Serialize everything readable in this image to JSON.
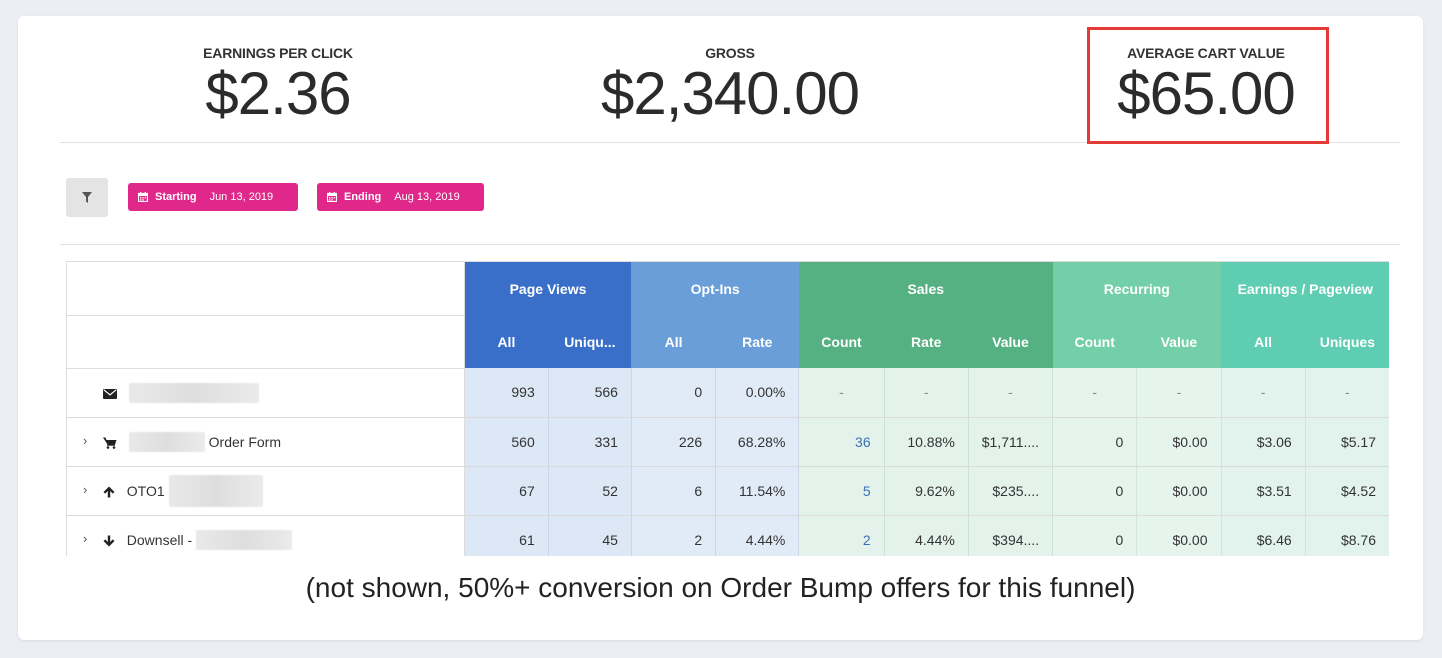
{
  "metrics": [
    {
      "label": "EARNINGS PER CLICK",
      "value": "$2.36"
    },
    {
      "label": "GROSS",
      "value": "$2,340.00"
    },
    {
      "label": "AVERAGE CART VALUE",
      "value": "$65.00"
    }
  ],
  "filters": {
    "starting_label": "Starting",
    "starting_value": "Jun 13, 2019",
    "ending_label": "Ending",
    "ending_value": "Aug 13, 2019"
  },
  "table": {
    "groups": [
      "Page Views",
      "Opt-Ins",
      "Sales",
      "Recurring",
      "Earnings / Pageview"
    ],
    "subheaders": [
      "All",
      "Uniqu...",
      "All",
      "Rate",
      "Count",
      "Rate",
      "Value",
      "Count",
      "Value",
      "All",
      "Uniques"
    ],
    "rows": [
      {
        "prefix": "",
        "suffix": "",
        "icon": "envelope-icon",
        "expandable": false,
        "cells": [
          "993",
          "566",
          "0",
          "0.00%",
          "-",
          "-",
          "-",
          "-",
          "-",
          "-",
          "-"
        ]
      },
      {
        "prefix": "",
        "suffix": "Order Form",
        "icon": "cart-icon",
        "expandable": true,
        "cells": [
          "560",
          "331",
          "226",
          "68.28%",
          "36",
          "10.88%",
          "$1,711....",
          "0",
          "$0.00",
          "$3.06",
          "$5.17"
        ]
      },
      {
        "prefix": "OTO1",
        "suffix": "",
        "icon": "arrow-up-icon",
        "expandable": true,
        "cells": [
          "67",
          "52",
          "6",
          "11.54%",
          "5",
          "9.62%",
          "$235....",
          "0",
          "$0.00",
          "$3.51",
          "$4.52"
        ]
      },
      {
        "prefix": "Downsell -",
        "suffix": "",
        "icon": "arrow-down-icon",
        "expandable": true,
        "cells": [
          "61",
          "45",
          "2",
          "4.44%",
          "2",
          "4.44%",
          "$394....",
          "0",
          "$0.00",
          "$6.46",
          "$8.76"
        ]
      }
    ]
  },
  "caption": "(not shown, 50%+ conversion on Order Bump offers for this funnel)",
  "colors": {
    "highlight": "#e53935",
    "date_pill": "#e0278a",
    "page_views": "#3a6fc9",
    "opt_ins": "#6a9ed8",
    "sales": "#55b082",
    "recurring": "#72cfa8",
    "earnings_pageview": "#5fcdb1"
  }
}
